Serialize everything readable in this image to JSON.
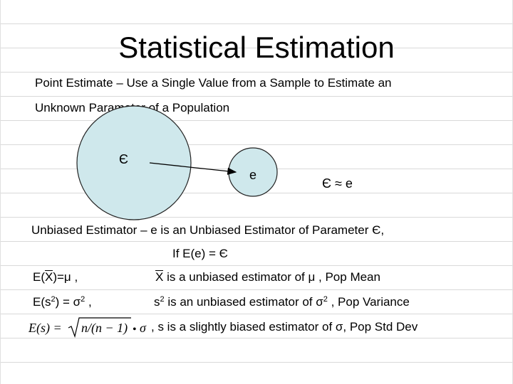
{
  "slide": {
    "title": "Statistical Estimation",
    "point_estimate_line1": "Point Estimate – Use a Single Value from a Sample to Estimate an",
    "point_estimate_line2": "Unknown Parameter of a Population",
    "diagram": {
      "param_symbol": "Є",
      "estimator_symbol": "e",
      "approx": "Є ≈ e",
      "population_color": "#cfe8ec",
      "sample_color": "#cfe8ec"
    },
    "unbiased_line": "Unbiased Estimator – e is an Unbiased  Estimator  of Parameter Є,",
    "condition": "If  E(e) = Є",
    "rows": [
      {
        "left_prefix": "E(",
        "left_over": "X",
        "left_suffix": ")=μ ,",
        "right_over": "X",
        "right_text": " is a unbiased estimator of μ , Pop Mean"
      },
      {
        "left_prefix": "E(s",
        "left_sup": "2",
        "left_mid": ") = σ",
        "left_sup2": "2",
        "left_suffix": " ,",
        "right_prefix": "s",
        "right_sup": "2",
        "right_mid": " is an unbiased estimator of σ",
        "right_sup2": "2",
        "right_suffix": " , Pop Variance"
      },
      {
        "formula": {
          "lhs": "E(s) =",
          "sqrt_content": "n/(n − 1)",
          "dot": "•",
          "sigma": "σ"
        },
        "right_text": ", s is a slightly biased estimator of σ, Pop Std Dev"
      }
    ]
  }
}
